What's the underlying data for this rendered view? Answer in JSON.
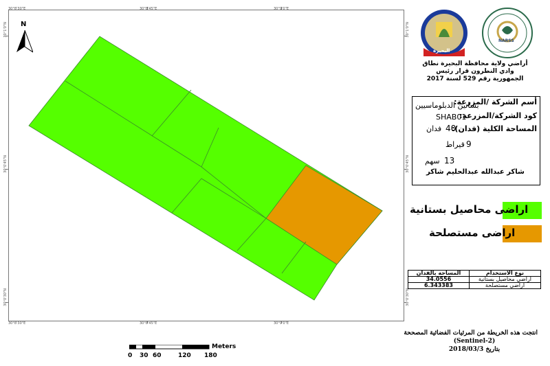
{
  "map": {
    "coords_top": [
      "30°8'30\"E",
      "30°8'45\"E",
      "30°9'0\"E"
    ],
    "coords_bottom": [
      "30°8'30\"E",
      "30°8'45\"E",
      "30°9'0\"E"
    ],
    "coords_left": [
      "30°1'0\"N",
      "30°0'45\"N",
      "30°0'30\"N"
    ],
    "coords_right": [
      "30°1'0\"N",
      "30°0'45\"N",
      "30°0'30\"N"
    ],
    "north_label": "N",
    "colors": {
      "orchard": "#55ff00",
      "reclaimed": "#e69800"
    }
  },
  "header": {
    "title_line1": "أراضي ولاية محافظة البحيرة نطاق",
    "title_line2": "وادي النطرون قرار رئيس",
    "title_line3": "الجمهورية رقم 529 لسنة 2017",
    "logo_left_text": "البحيرة",
    "logo_right_text": "NARSS"
  },
  "info": {
    "company_label": "أسم الشركة /المزرعة:",
    "company_value": "بساتين الدبلوماسيين",
    "code_label": "كود الشركة/المزرعة:",
    "code_value": "SHAB01",
    "area_label": "المساحة الكلية (فدان):",
    "feddan_value": "40",
    "feddan_unit": "فدان",
    "qirat_value": "9",
    "qirat_unit": "قيراط",
    "sahm_value": "13",
    "sahm_unit": "سهم",
    "owner": "شاكر عبدالله عبدالحليم شاكر"
  },
  "legend": {
    "items": [
      {
        "label": "اراضى محاصيل بستانية",
        "color": "#55ff00"
      },
      {
        "label": "اراضى مستصلحة",
        "color": "#e69800"
      }
    ]
  },
  "area_table": {
    "headers": [
      "المساحه بالفدان",
      "نوع الاستخدام"
    ],
    "rows": [
      [
        "34.0556",
        "اراضي محاصيل بستانية"
      ],
      [
        "6.343383",
        "اراضي مستصلحة"
      ]
    ]
  },
  "scalebar": {
    "unit": "Meters",
    "ticks": [
      "0",
      "30",
      "60",
      "120",
      "180"
    ]
  },
  "footer": {
    "line1": "انتجت هذه الخريطة من المرئيات الفضائية المصححة",
    "line2": "(Sentinel-2)",
    "line3": "بتاريخ 2018/03/3"
  }
}
